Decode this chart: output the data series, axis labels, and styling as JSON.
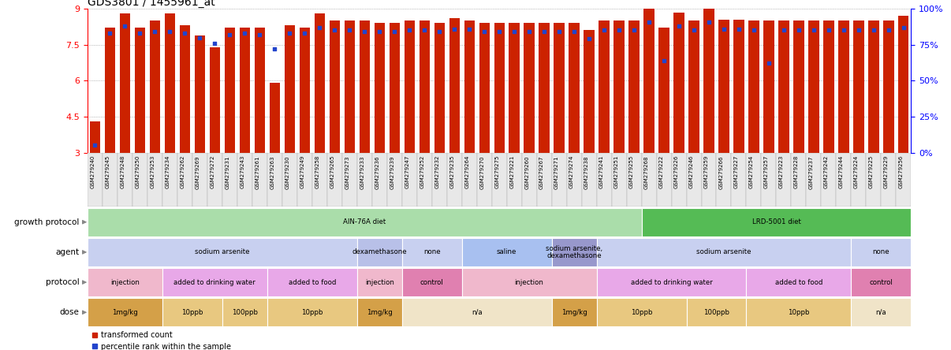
{
  "title": "GDS3801 / 1455961_at",
  "samples": [
    "GSM279240",
    "GSM279245",
    "GSM279248",
    "GSM279250",
    "GSM279253",
    "GSM279234",
    "GSM279262",
    "GSM279269",
    "GSM279272",
    "GSM279231",
    "GSM279243",
    "GSM279261",
    "GSM279263",
    "GSM279230",
    "GSM279249",
    "GSM279258",
    "GSM279265",
    "GSM279273",
    "GSM279233",
    "GSM279236",
    "GSM279239",
    "GSM279247",
    "GSM279252",
    "GSM279232",
    "GSM279235",
    "GSM279264",
    "GSM279270",
    "GSM279275",
    "GSM279221",
    "GSM279260",
    "GSM279267",
    "GSM279271",
    "GSM279274",
    "GSM279238",
    "GSM279241",
    "GSM279251",
    "GSM279255",
    "GSM279268",
    "GSM279222",
    "GSM279226",
    "GSM279246",
    "GSM279259",
    "GSM279266",
    "GSM279227",
    "GSM279254",
    "GSM279257",
    "GSM279223",
    "GSM279228",
    "GSM279237",
    "GSM279242",
    "GSM279244",
    "GSM279224",
    "GSM279225",
    "GSM279229",
    "GSM279256"
  ],
  "bar_values": [
    4.3,
    8.2,
    8.8,
    8.2,
    8.5,
    8.8,
    8.3,
    7.9,
    7.4,
    8.2,
    8.2,
    8.2,
    5.9,
    8.3,
    8.2,
    8.8,
    8.5,
    8.5,
    8.5,
    8.4,
    8.4,
    8.5,
    8.5,
    8.4,
    8.6,
    8.5,
    8.4,
    8.4,
    8.4,
    8.4,
    8.4,
    8.4,
    8.4,
    8.1,
    8.5,
    8.5,
    8.5,
    9.1,
    8.2,
    8.85,
    8.5,
    9.1,
    8.55,
    8.55,
    8.5,
    8.5,
    8.5,
    8.5,
    8.5,
    8.5,
    8.5,
    8.5,
    8.5,
    8.5,
    8.7
  ],
  "percentile_values": [
    5,
    83,
    88,
    83,
    84,
    84,
    83,
    80,
    76,
    82,
    83,
    82,
    72,
    83,
    83,
    87,
    85,
    85,
    84,
    84,
    84,
    85,
    85,
    84,
    86,
    86,
    84,
    84,
    84,
    84,
    84,
    84,
    84,
    79,
    85,
    85,
    85,
    91,
    64,
    88,
    85,
    91,
    86,
    86,
    85,
    62,
    85,
    85,
    85,
    85,
    85,
    85,
    85,
    85,
    87
  ],
  "ymin": 3,
  "ymax": 9,
  "yticks": [
    3,
    4.5,
    6,
    7.5,
    9
  ],
  "ytick_labels": [
    "3",
    "4.5",
    "6",
    "7.5",
    "9"
  ],
  "y2ticks": [
    0,
    25,
    50,
    75,
    100
  ],
  "y2tick_labels": [
    "0%",
    "25%",
    "50%",
    "75%",
    "100%"
  ],
  "bar_color": "#cc2200",
  "dot_color": "#2244cc",
  "grid_color": "#888888",
  "bg_color": "#ffffff",
  "title_fontsize": 10,
  "annotation_rows": [
    {
      "label": "growth protocol",
      "segments": [
        {
          "text": "AIN-76A diet",
          "start": 0,
          "end": 37,
          "color": "#aaddaa"
        },
        {
          "text": "LRD-5001 diet",
          "start": 37,
          "end": 55,
          "color": "#55bb55"
        }
      ]
    },
    {
      "label": "agent",
      "segments": [
        {
          "text": "sodium arsenite",
          "start": 0,
          "end": 18,
          "color": "#c8d0f0"
        },
        {
          "text": "dexamethasone",
          "start": 18,
          "end": 21,
          "color": "#b8c0e8"
        },
        {
          "text": "none",
          "start": 21,
          "end": 25,
          "color": "#c8d0f0"
        },
        {
          "text": "saline",
          "start": 25,
          "end": 31,
          "color": "#a8c0f0"
        },
        {
          "text": "sodium arsenite,\ndexamethasone",
          "start": 31,
          "end": 34,
          "color": "#9898cc"
        },
        {
          "text": "sodium arsenite",
          "start": 34,
          "end": 51,
          "color": "#c8d0f0"
        },
        {
          "text": "none",
          "start": 51,
          "end": 55,
          "color": "#c8d0f0"
        }
      ]
    },
    {
      "label": "protocol",
      "segments": [
        {
          "text": "injection",
          "start": 0,
          "end": 5,
          "color": "#f0b8cc"
        },
        {
          "text": "added to drinking water",
          "start": 5,
          "end": 12,
          "color": "#e8a8e8"
        },
        {
          "text": "added to food",
          "start": 12,
          "end": 18,
          "color": "#e8a8e8"
        },
        {
          "text": "injection",
          "start": 18,
          "end": 21,
          "color": "#f0b8cc"
        },
        {
          "text": "control",
          "start": 21,
          "end": 25,
          "color": "#e080b0"
        },
        {
          "text": "injection",
          "start": 25,
          "end": 34,
          "color": "#f0b8cc"
        },
        {
          "text": "added to drinking water",
          "start": 34,
          "end": 44,
          "color": "#e8a8e8"
        },
        {
          "text": "added to food",
          "start": 44,
          "end": 51,
          "color": "#e8a8e8"
        },
        {
          "text": "control",
          "start": 51,
          "end": 55,
          "color": "#e080b0"
        }
      ]
    },
    {
      "label": "dose",
      "segments": [
        {
          "text": "1mg/kg",
          "start": 0,
          "end": 5,
          "color": "#d4a048"
        },
        {
          "text": "10ppb",
          "start": 5,
          "end": 9,
          "color": "#e8c880"
        },
        {
          "text": "100ppb",
          "start": 9,
          "end": 12,
          "color": "#e8c880"
        },
        {
          "text": "10ppb",
          "start": 12,
          "end": 18,
          "color": "#e8c880"
        },
        {
          "text": "1mg/kg",
          "start": 18,
          "end": 21,
          "color": "#d4a048"
        },
        {
          "text": "n/a",
          "start": 21,
          "end": 31,
          "color": "#f0e4c8"
        },
        {
          "text": "1mg/kg",
          "start": 31,
          "end": 34,
          "color": "#d4a048"
        },
        {
          "text": "10ppb",
          "start": 34,
          "end": 40,
          "color": "#e8c880"
        },
        {
          "text": "100ppb",
          "start": 40,
          "end": 44,
          "color": "#e8c880"
        },
        {
          "text": "10ppb",
          "start": 44,
          "end": 51,
          "color": "#e8c880"
        },
        {
          "text": "n/a",
          "start": 51,
          "end": 55,
          "color": "#f0e4c8"
        }
      ]
    }
  ],
  "legend": [
    {
      "label": "transformed count",
      "color": "#cc2200"
    },
    {
      "label": "percentile rank within the sample",
      "color": "#2244cc"
    }
  ]
}
